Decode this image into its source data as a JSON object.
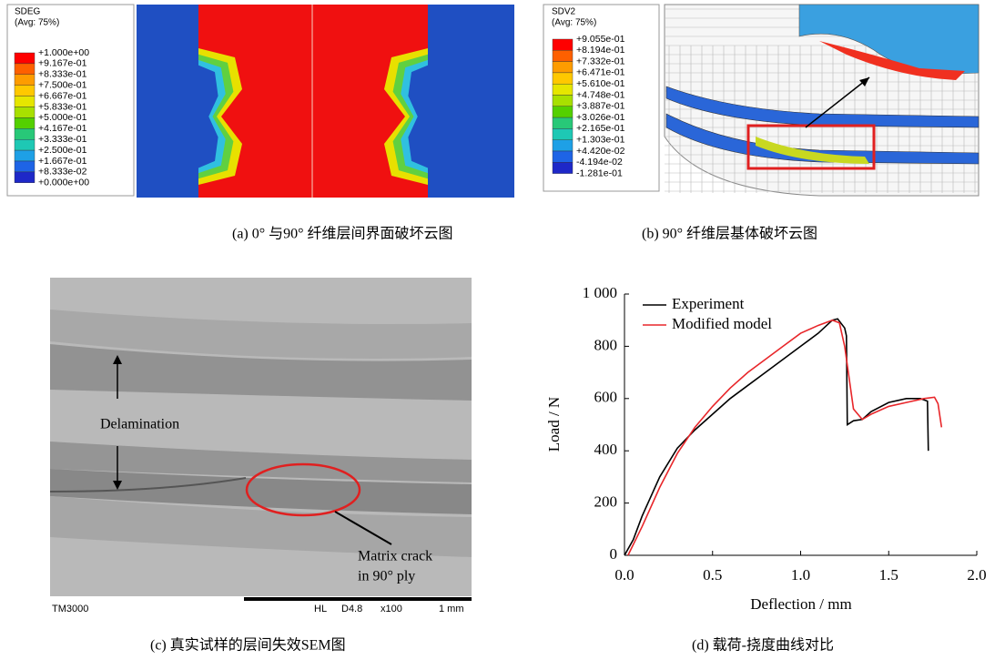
{
  "panels": {
    "a": {
      "legend": {
        "title": "SDEG",
        "subtitle": "(Avg: 75%)",
        "labels": [
          "+1.000e+00",
          "+9.167e-01",
          "+8.333e-01",
          "+7.500e-01",
          "+6.667e-01",
          "+5.833e-01",
          "+5.000e-01",
          "+4.167e-01",
          "+3.333e-01",
          "+2.500e-01",
          "+1.667e-01",
          "+8.333e-02",
          "+0.000e+00"
        ]
      },
      "caption": "(a)  0°  与90°  纤维层间界面破坏云图"
    },
    "b": {
      "legend": {
        "title": "SDV2",
        "subtitle": "(Avg: 75%)",
        "labels": [
          "+9.055e-01",
          "+8.194e-01",
          "+7.332e-01",
          "+6.471e-01",
          "+5.610e-01",
          "+4.748e-01",
          "+3.887e-01",
          "+3.026e-01",
          "+2.165e-01",
          "+1.303e-01",
          "+4.420e-02",
          "-4.194e-02",
          "-1.281e-01"
        ]
      },
      "caption": "(b)  90°  纤维层基体破坏云图"
    },
    "c": {
      "annotations": {
        "delamination": "Delamination",
        "crack_line1": "Matrix crack",
        "crack_line2": "in 90° ply"
      },
      "footer": {
        "instrument": "TM3000",
        "mode": "HL",
        "distance": "D4.8",
        "magnification": "x100",
        "scale": "1 mm"
      },
      "caption": "(c)  真实试样的层间失效SEM图"
    }
  },
  "chart_data": {
    "type": "line",
    "caption": "(d)  载荷-挠度曲线对比",
    "xlabel": "Deflection / mm",
    "ylabel": "Load / N",
    "xlim": [
      0,
      2
    ],
    "xticks": [
      {
        "value": 0,
        "label": "0.0"
      },
      {
        "value": 0.5,
        "label": "0.5"
      },
      {
        "value": 1,
        "label": "1.0"
      },
      {
        "value": 1.5,
        "label": "1.5"
      },
      {
        "value": 2,
        "label": "2.0"
      }
    ],
    "ylim": [
      0,
      1000
    ],
    "yticks": [
      0,
      200,
      400,
      600,
      800,
      {
        "value": 1000,
        "label": "1 000"
      }
    ],
    "legend": "upper left",
    "series": [
      {
        "name": "Experiment",
        "color": "#000000",
        "x": [
          0,
          0.05,
          0.1,
          0.2,
          0.3,
          0.4,
          0.5,
          0.6,
          0.7,
          0.8,
          0.9,
          1.0,
          1.1,
          1.18,
          1.21,
          1.25,
          1.26,
          1.265,
          1.3,
          1.35,
          1.4,
          1.5,
          1.6,
          1.68,
          1.72,
          1.725
        ],
        "values": [
          0,
          60,
          150,
          300,
          410,
          480,
          540,
          600,
          650,
          700,
          750,
          800,
          850,
          900,
          905,
          870,
          840,
          500,
          515,
          520,
          550,
          585,
          600,
          600,
          590,
          400
        ]
      },
      {
        "name": "Modified model",
        "color": "#e8262a",
        "x": [
          0.02,
          0.1,
          0.2,
          0.3,
          0.4,
          0.5,
          0.6,
          0.7,
          0.8,
          0.9,
          1.0,
          1.1,
          1.18,
          1.22,
          1.25,
          1.3,
          1.35,
          1.4,
          1.5,
          1.6,
          1.7,
          1.76,
          1.78,
          1.8
        ],
        "values": [
          0,
          110,
          260,
          390,
          490,
          570,
          640,
          700,
          750,
          800,
          850,
          880,
          900,
          890,
          800,
          560,
          520,
          540,
          570,
          585,
          600,
          605,
          580,
          490
        ]
      }
    ]
  }
}
